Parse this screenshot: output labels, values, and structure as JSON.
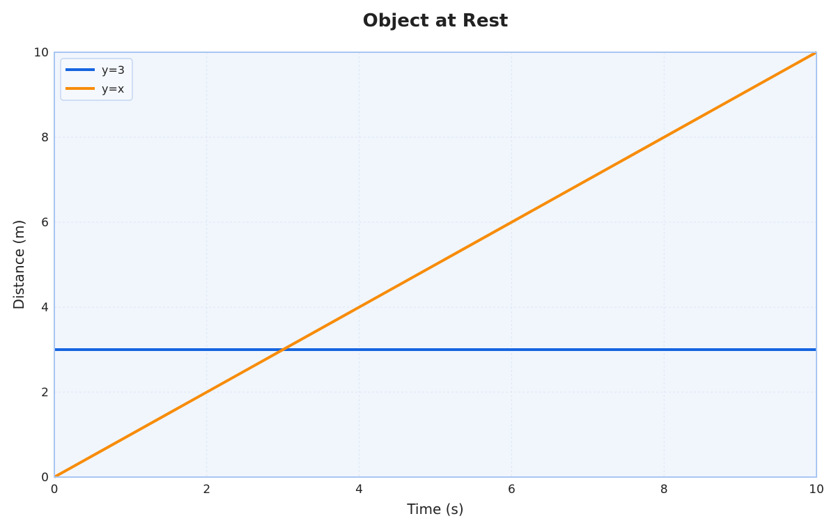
{
  "chart_data": {
    "type": "line",
    "title": "Object at Rest",
    "xlabel": "Time (s)",
    "ylabel": "Distance (m)",
    "xlim": [
      0,
      10
    ],
    "ylim": [
      0,
      10
    ],
    "x_ticks": [
      "0",
      "2",
      "4",
      "6",
      "8",
      "10"
    ],
    "y_ticks": [
      "0",
      "2",
      "4",
      "6",
      "8",
      "10"
    ],
    "grid": true,
    "legend_position": "top-left",
    "series": [
      {
        "name": "y=3",
        "color": "#1565e0",
        "x": [
          0,
          10
        ],
        "y": [
          3,
          3
        ]
      },
      {
        "name": "y=x",
        "color": "#f78c0a",
        "x": [
          0,
          10
        ],
        "y": [
          0,
          10
        ]
      }
    ]
  },
  "colors": {
    "plot_background": "#f1f6fd",
    "plot_border": "#a8c6f2",
    "grid": "#dde6f2"
  }
}
